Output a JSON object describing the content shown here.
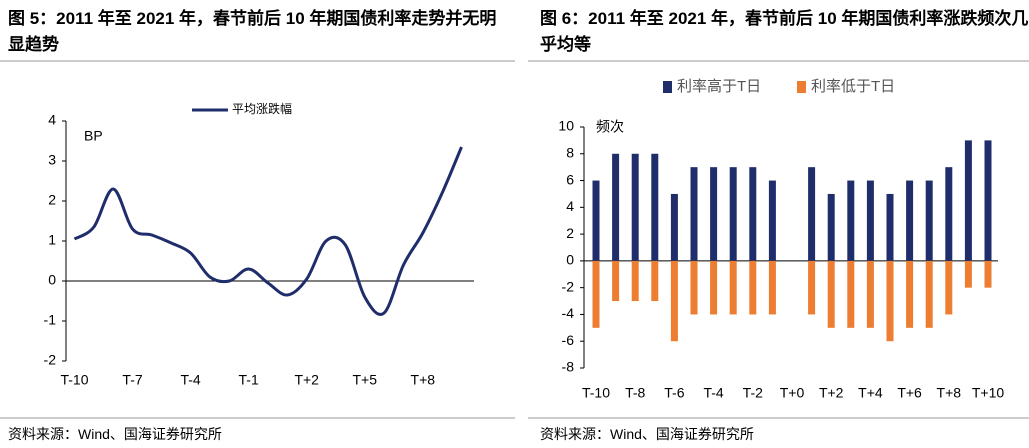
{
  "chart_data": [
    {
      "type": "line",
      "title": "图 5：2011 年至 2021 年，春节前后 10 年期国债利率走势并无明显趋势",
      "annotation": "BP",
      "categories": [
        "T-10",
        null,
        null,
        "T-7",
        null,
        null,
        "T-4",
        null,
        null,
        "T-1",
        null,
        null,
        "T+2",
        null,
        null,
        "T+5",
        null,
        null,
        "T+8",
        null,
        null
      ],
      "series": [
        {
          "name": "平均涨跌幅",
          "color": "#1f2d6b",
          "values": [
            1.05,
            1.35,
            2.3,
            1.3,
            1.15,
            0.95,
            0.7,
            0.1,
            0.0,
            0.3,
            -0.05,
            -0.35,
            0.05,
            1.0,
            0.9,
            -0.4,
            -0.8,
            0.4,
            1.2,
            2.2,
            3.35
          ]
        }
      ],
      "ylim": [
        -2,
        4
      ],
      "yticks": [
        -2,
        -1,
        0,
        1,
        2,
        3,
        4
      ],
      "source": "资料来源：Wind、国海证券研究所"
    },
    {
      "type": "bar",
      "title": "图 6：2011 年至 2021 年，春节前后 10 年期国债利率涨跌频次几乎均等",
      "annotation": "频次",
      "categories": [
        "T-10",
        null,
        "T-8",
        null,
        "T-6",
        null,
        "T-4",
        null,
        "T-2",
        null,
        "T+0",
        null,
        "T+2",
        null,
        "T+4",
        null,
        "T+6",
        null,
        "T+8",
        null,
        "T+10"
      ],
      "series": [
        {
          "name": "利率高于T日",
          "color": "#1f2d6b",
          "values": [
            6,
            8,
            8,
            8,
            5,
            7,
            7,
            7,
            7,
            6,
            0,
            7,
            5,
            6,
            6,
            5,
            6,
            6,
            7,
            9,
            9
          ]
        },
        {
          "name": "利率低于T日",
          "color": "#ed7d31",
          "values": [
            -5,
            -3,
            -3,
            -3,
            -6,
            -4,
            -4,
            -4,
            -4,
            -4,
            0,
            -4,
            -5,
            -5,
            -5,
            -6,
            -5,
            -5,
            -4,
            -2,
            -2
          ]
        }
      ],
      "ylim": [
        -8,
        10
      ],
      "yticks": [
        -8,
        -6,
        -4,
        -2,
        0,
        2,
        4,
        6,
        8,
        10
      ],
      "source": "资料来源：Wind、国海证券研究所"
    }
  ]
}
